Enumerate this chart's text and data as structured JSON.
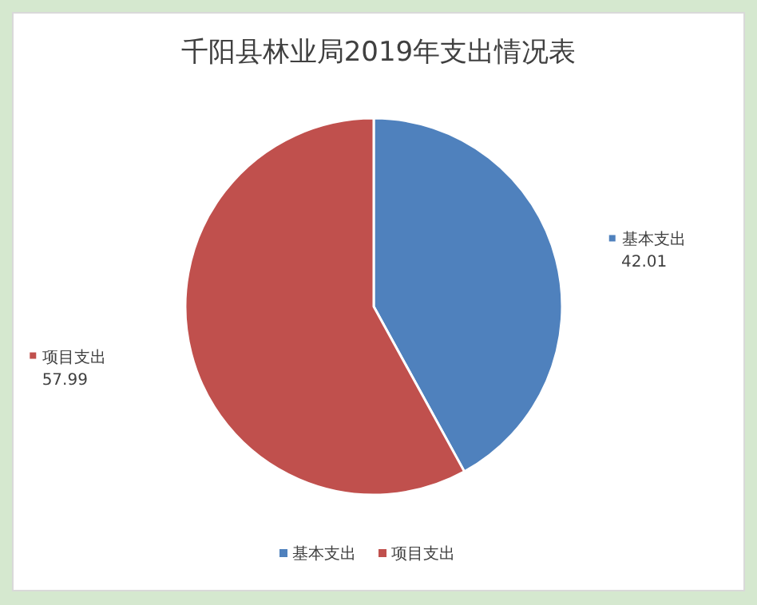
{
  "chart_data": {
    "type": "pie",
    "title": "千阳县林业局2019年支出情况表",
    "categories": [
      "基本支出",
      "项目支出"
    ],
    "values": [
      42.01,
      57.99
    ],
    "colors": [
      "#4f81bd",
      "#c0504d"
    ],
    "data_labels": true,
    "legend": "bottom"
  }
}
